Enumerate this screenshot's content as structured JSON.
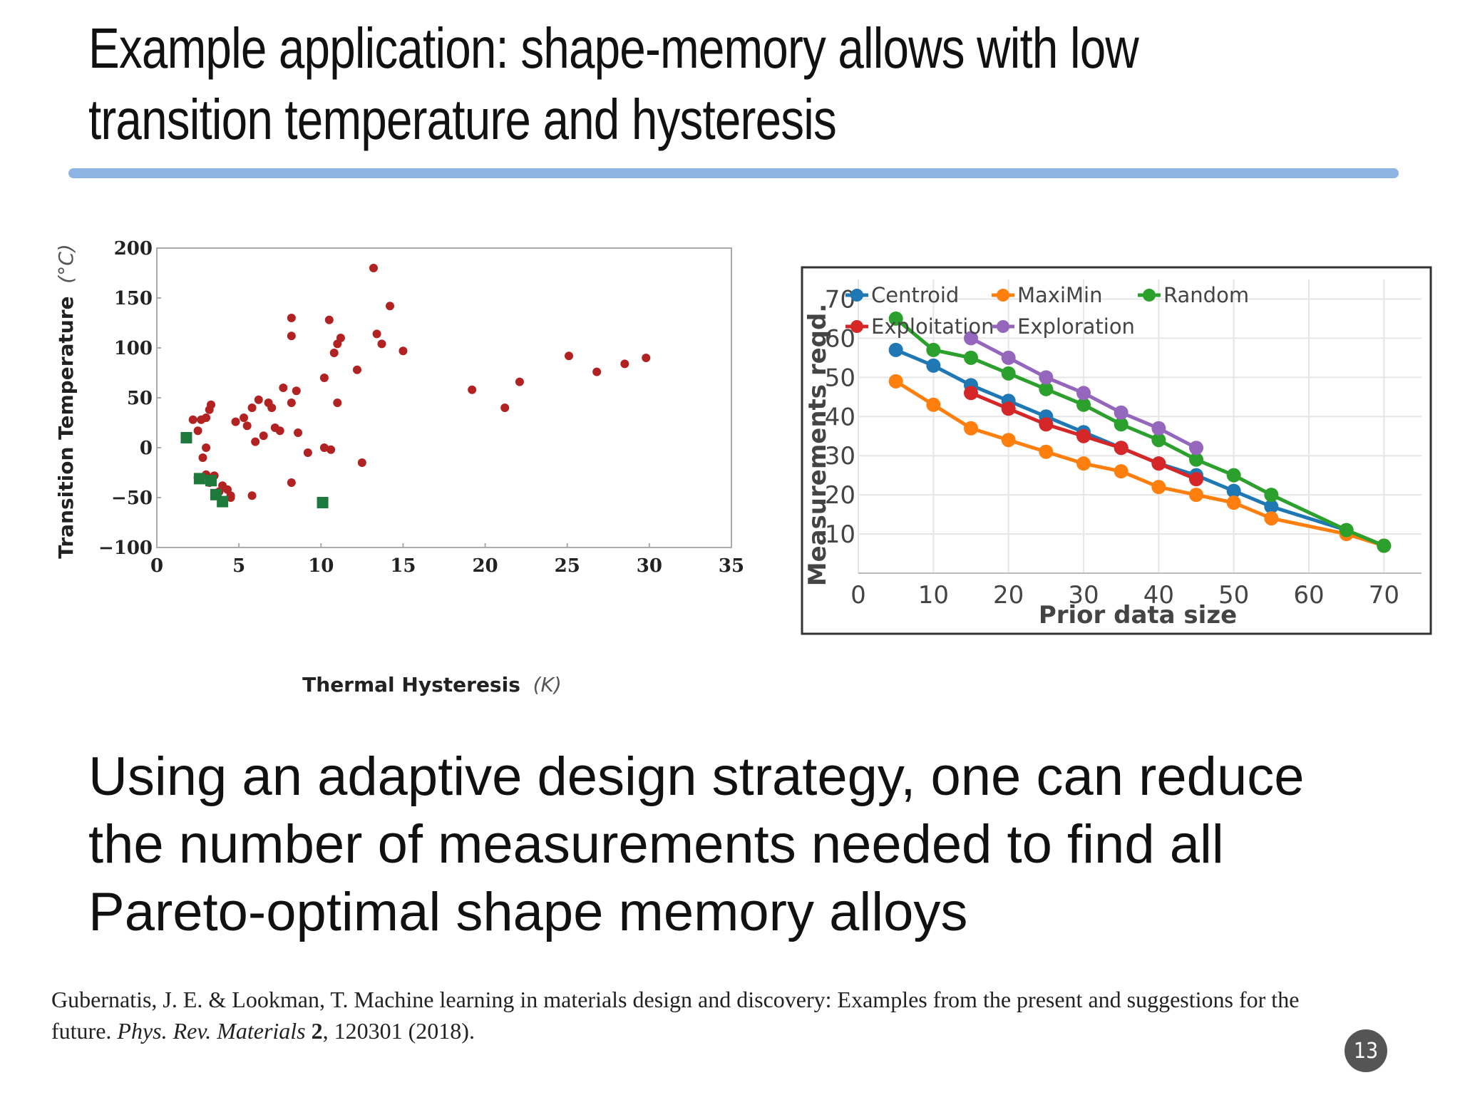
{
  "slide": {
    "title_line1": "Example application: shape-memory allows with low",
    "title_line2": "transition temperature and hysteresis",
    "body_line1": "Using an adaptive design strategy, one can reduce",
    "body_line2": "the number of measurements needed to find all",
    "body_line3": "Pareto-optimal shape memory alloys",
    "citation": {
      "part1": "Gubernatis, J. E. & Lookman, T. Machine learning in materials design and discovery: Examples from the present and suggestions for the future. ",
      "journal": "Phys. Rev. Materials",
      "volume": "2",
      "rest": ", 120301 (2018)."
    },
    "page_number": "13",
    "colors": {
      "title_rule": "#8eb4e3",
      "page_badge": "#555555"
    }
  },
  "chart_data": [
    {
      "type": "scatter",
      "title": "",
      "xlabel": "Thermal Hysteresis",
      "xlabel_unit": "(K)",
      "ylabel": "Transition Temperature",
      "ylabel_unit": "(°C)",
      "xlim": [
        0,
        35
      ],
      "ylim": [
        -100,
        200
      ],
      "xticks": [
        "0",
        "5",
        "10",
        "15",
        "20",
        "25",
        "30",
        "35"
      ],
      "yticks": [
        "-100",
        "-50",
        "0",
        "50",
        "100",
        "150",
        "200"
      ],
      "grid": false,
      "series": [
        {
          "marker": "circle",
          "color": "#b22222",
          "points": [
            [
              2.2,
              28
            ],
            [
              2.7,
              28
            ],
            [
              2.5,
              17
            ],
            [
              3.2,
              38
            ],
            [
              3.0,
              30
            ],
            [
              3.3,
              43
            ],
            [
              2.8,
              -10
            ],
            [
              3.0,
              0
            ],
            [
              2.5,
              -30
            ],
            [
              3.0,
              -27
            ],
            [
              3.5,
              -28
            ],
            [
              3.2,
              -35
            ],
            [
              4.0,
              -38
            ],
            [
              4.3,
              -42
            ],
            [
              3.8,
              -44
            ],
            [
              4.5,
              -50
            ],
            [
              4.5,
              -48
            ],
            [
              5.8,
              -48
            ],
            [
              4.8,
              26
            ],
            [
              5.3,
              30
            ],
            [
              5.5,
              22
            ],
            [
              5.8,
              40
            ],
            [
              6.0,
              6
            ],
            [
              6.5,
              12
            ],
            [
              6.8,
              45
            ],
            [
              7.0,
              40
            ],
            [
              7.2,
              20
            ],
            [
              7.5,
              17
            ],
            [
              6.2,
              48
            ],
            [
              7.7,
              60
            ],
            [
              8.2,
              45
            ],
            [
              8.5,
              57
            ],
            [
              8.6,
              15
            ],
            [
              8.2,
              130
            ],
            [
              8.2,
              112
            ],
            [
              9.2,
              -5
            ],
            [
              8.2,
              -35
            ],
            [
              10.2,
              70
            ],
            [
              10.5,
              128
            ],
            [
              10.8,
              95
            ],
            [
              11.0,
              104
            ],
            [
              11.2,
              110
            ],
            [
              11.0,
              45
            ],
            [
              10.2,
              0
            ],
            [
              10.6,
              -2
            ],
            [
              12.2,
              78
            ],
            [
              12.5,
              -15
            ],
            [
              13.2,
              180
            ],
            [
              13.4,
              114
            ],
            [
              13.7,
              104
            ],
            [
              14.2,
              142
            ],
            [
              15.0,
              97
            ],
            [
              19.2,
              58
            ],
            [
              21.2,
              40
            ],
            [
              22.1,
              66
            ],
            [
              25.1,
              92
            ],
            [
              26.8,
              76
            ],
            [
              28.5,
              84
            ],
            [
              29.8,
              90
            ]
          ]
        },
        {
          "marker": "square",
          "color": "#1e7a3c",
          "points": [
            [
              1.8,
              10
            ],
            [
              2.6,
              -31
            ],
            [
              3.3,
              -33
            ],
            [
              3.6,
              -47
            ],
            [
              4.0,
              -54
            ],
            [
              10.1,
              -55
            ]
          ]
        }
      ]
    },
    {
      "type": "line",
      "title": "",
      "xlabel": "Prior data size",
      "ylabel": "Measurements reqd.",
      "xlim": [
        0,
        75
      ],
      "ylim": [
        0,
        75
      ],
      "xticks": [
        "0",
        "10",
        "20",
        "30",
        "40",
        "50",
        "60",
        "70"
      ],
      "yticks": [
        "10",
        "20",
        "30",
        "40",
        "50",
        "60",
        "70"
      ],
      "grid": true,
      "legend_position": "top-left (inside)",
      "series": [
        {
          "name": "Centroid",
          "color": "#1f77b4",
          "x": [
            5,
            10,
            15,
            20,
            25,
            30,
            35,
            40,
            45,
            50,
            55,
            65,
            70
          ],
          "y": [
            57,
            53,
            48,
            44,
            40,
            36,
            32,
            28,
            25,
            21,
            17,
            11,
            7
          ]
        },
        {
          "name": "MaxiMin",
          "color": "#ff7f0e",
          "x": [
            5,
            10,
            15,
            20,
            25,
            30,
            35,
            40,
            45,
            50,
            55,
            65,
            70
          ],
          "y": [
            49,
            43,
            37,
            34,
            31,
            28,
            26,
            22,
            20,
            18,
            14,
            10,
            7
          ]
        },
        {
          "name": "Random",
          "color": "#2ca02c",
          "x": [
            5,
            10,
            15,
            20,
            25,
            30,
            35,
            40,
            45,
            50,
            55,
            65,
            70
          ],
          "y": [
            65,
            57,
            55,
            51,
            47,
            43,
            38,
            34,
            29,
            25,
            20,
            11,
            7
          ]
        },
        {
          "name": "Exploitation",
          "color": "#d62728",
          "x": [
            15,
            20,
            25,
            30,
            35,
            40,
            45
          ],
          "y": [
            46,
            42,
            38,
            35,
            32,
            28,
            24
          ]
        },
        {
          "name": "Exploration",
          "color": "#9467bd",
          "x": [
            15,
            20,
            25,
            30,
            35,
            40,
            45
          ],
          "y": [
            60,
            55,
            50,
            46,
            41,
            37,
            32
          ]
        }
      ]
    }
  ]
}
